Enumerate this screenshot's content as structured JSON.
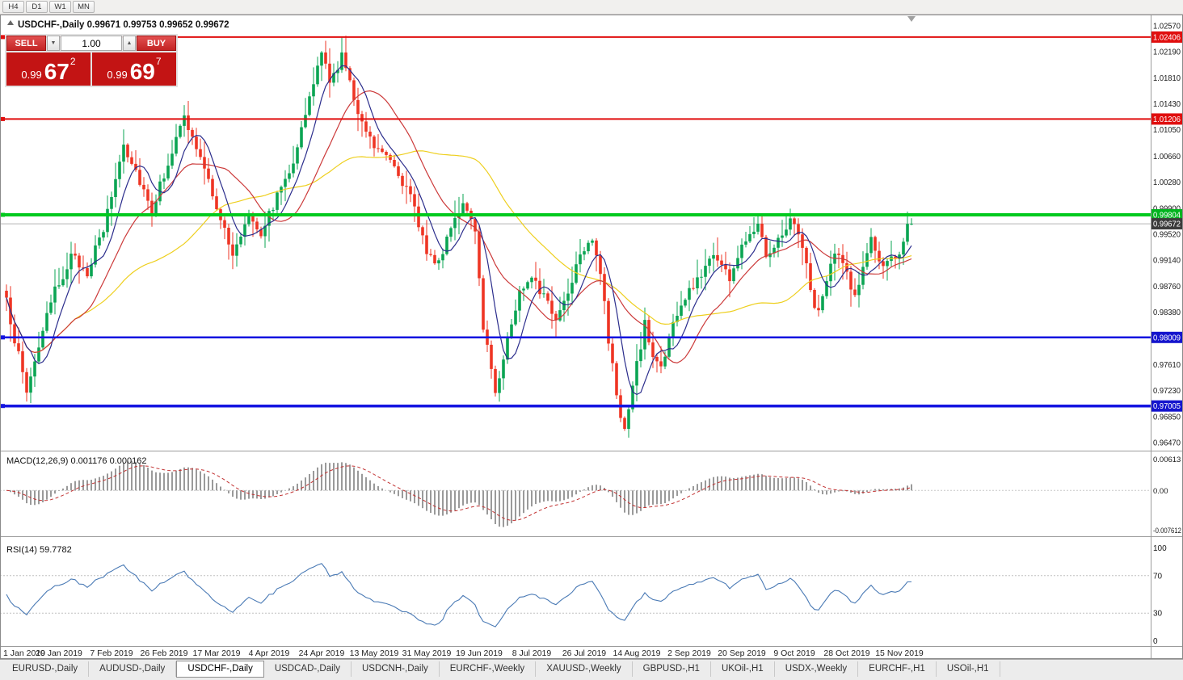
{
  "toolbar": {
    "timeframes": [
      "H4",
      "D1",
      "W1",
      "MN"
    ]
  },
  "trade_widget": {
    "sell_label": "SELL",
    "buy_label": "BUY",
    "volume": "1.00",
    "sell_price": {
      "prefix": "0.99",
      "big": "67",
      "sup": "2"
    },
    "buy_price": {
      "prefix": "0.99",
      "big": "69",
      "sup": "7"
    }
  },
  "colors": {
    "up": "#0ba553",
    "down": "#ee3524",
    "macd_hist": "#8f8f8f",
    "macd_signal": "#c23232",
    "rsi": "#4a7ab5"
  },
  "chart_data": {
    "type": "candlestick",
    "title": "USDCHF-,Daily 0.99671 0.99753 0.99652 0.99672",
    "symbol": "USDCHF-",
    "timeframe": "Daily",
    "ohlc": {
      "open": 0.99671,
      "high": 0.99753,
      "low": 0.99652,
      "close": 0.99672
    },
    "y_range": {
      "min": 0.9647,
      "max": 1.0257
    },
    "y_axis_ticks": [
      1.0257,
      1.0219,
      1.0181,
      1.0143,
      1.0105,
      1.0066,
      1.0028,
      0.999,
      0.9952,
      0.9914,
      0.9876,
      0.9838,
      0.9761,
      0.9723,
      0.9685,
      0.9647
    ],
    "price_badges": [
      {
        "value": 1.02406,
        "color": "#e00e0e"
      },
      {
        "value": 1.01206,
        "color": "#e00e0e"
      },
      {
        "value": 0.99804,
        "color": "#00b41e"
      },
      {
        "value": 0.99672,
        "color": "#3c3c3c"
      },
      {
        "value": 0.98009,
        "color": "#1414cd"
      },
      {
        "value": 0.97005,
        "color": "#1414cd"
      }
    ],
    "price_lines": [
      {
        "price": 1.02406,
        "color": "#e00e0e",
        "width": 2
      },
      {
        "price": 1.01206,
        "color": "#e00e0e",
        "width": 2
      },
      {
        "price": 0.99804,
        "color": "#00ca1e",
        "width": 4
      },
      {
        "price": 0.98009,
        "color": "#1414e0",
        "width": 2.5
      },
      {
        "price": 0.97005,
        "color": "#1414e0",
        "width": 3.5
      }
    ],
    "current_price": 0.99672,
    "candle_count": 225,
    "price_anchors": [
      [
        0,
        0.9852
      ],
      [
        2,
        0.98
      ],
      [
        5,
        0.9722
      ],
      [
        8,
        0.979
      ],
      [
        12,
        0.9868
      ],
      [
        16,
        0.9918
      ],
      [
        20,
        0.9898
      ],
      [
        24,
        0.9958
      ],
      [
        29,
        1.0085
      ],
      [
        33,
        1.0032
      ],
      [
        36,
        0.9988
      ],
      [
        40,
        1.0058
      ],
      [
        44,
        1.0122
      ],
      [
        47,
        1.0078
      ],
      [
        52,
        0.9995
      ],
      [
        56,
        0.9918
      ],
      [
        60,
        0.9985
      ],
      [
        63,
        0.9955
      ],
      [
        67,
        1.0008
      ],
      [
        71,
        1.0062
      ],
      [
        75,
        1.0148
      ],
      [
        78,
        1.0222
      ],
      [
        80,
        1.017
      ],
      [
        83,
        1.0215
      ],
      [
        86,
        1.015
      ],
      [
        88,
        1.012
      ],
      [
        91,
        1.0082
      ],
      [
        94,
        1.0075
      ],
      [
        97,
        1.0042
      ],
      [
        100,
        1.0005
      ],
      [
        104,
        0.993
      ],
      [
        107,
        0.9906
      ],
      [
        110,
        0.9968
      ],
      [
        113,
        0.9996
      ],
      [
        116,
        0.9952
      ],
      [
        118,
        0.982
      ],
      [
        121,
        0.9722
      ],
      [
        124,
        0.9798
      ],
      [
        127,
        0.9866
      ],
      [
        130,
        0.9896
      ],
      [
        133,
        0.986
      ],
      [
        136,
        0.9828
      ],
      [
        139,
        0.9868
      ],
      [
        142,
        0.9928
      ],
      [
        145,
        0.9948
      ],
      [
        147,
        0.9898
      ],
      [
        149,
        0.9795
      ],
      [
        151,
        0.9718
      ],
      [
        153,
        0.9662
      ],
      [
        156,
        0.976
      ],
      [
        158,
        0.982
      ],
      [
        160,
        0.9772
      ],
      [
        162,
        0.9758
      ],
      [
        165,
        0.982
      ],
      [
        168,
        0.9858
      ],
      [
        171,
        0.9885
      ],
      [
        175,
        0.9926
      ],
      [
        179,
        0.9888
      ],
      [
        183,
        0.9946
      ],
      [
        186,
        0.9972
      ],
      [
        188,
        0.9925
      ],
      [
        191,
        0.9942
      ],
      [
        194,
        0.9976
      ],
      [
        197,
        0.9938
      ],
      [
        199,
        0.9868
      ],
      [
        201,
        0.9836
      ],
      [
        205,
        0.9926
      ],
      [
        208,
        0.9896
      ],
      [
        210,
        0.986
      ],
      [
        214,
        0.9944
      ],
      [
        217,
        0.99
      ],
      [
        220,
        0.9918
      ],
      [
        222,
        0.994
      ],
      [
        224,
        0.99672
      ]
    ],
    "moving_averages": [
      {
        "period": 45,
        "color": "#eecf1e"
      },
      {
        "period": 18,
        "color": "#cc3a3a"
      },
      {
        "period": 7,
        "color": "#2b2d8c"
      }
    ],
    "x_axis_labels": [
      [
        "1 Jan 2019",
        0
      ],
      [
        "20 Jan 2019",
        13
      ],
      [
        "7 Feb 2019",
        26
      ],
      [
        "26 Feb 2019",
        39
      ],
      [
        "17 Mar 2019",
        52
      ],
      [
        "4 Apr 2019",
        65
      ],
      [
        "24 Apr 2019",
        78
      ],
      [
        "13 May 2019",
        91
      ],
      [
        "31 May 2019",
        104
      ],
      [
        "19 Jun 2019",
        117
      ],
      [
        "8 Jul 2019",
        130
      ],
      [
        "26 Jul 2019",
        143
      ],
      [
        "14 Aug 2019",
        156
      ],
      [
        "2 Sep 2019",
        169
      ],
      [
        "20 Sep 2019",
        182
      ],
      [
        "9 Oct 2019",
        195
      ],
      [
        "28 Oct 2019",
        208
      ],
      [
        "15 Nov 2019",
        221
      ]
    ],
    "indicators": {
      "macd": {
        "label": "MACD(12,26,9)",
        "values": "0.001176 0.000162",
        "fast": 12,
        "slow": 26,
        "signal": 9,
        "vmax": 0.00613,
        "vmin": -0.007612,
        "axis_labels": [
          "0.00613",
          "0.00",
          "-0.007612"
        ]
      },
      "rsi": {
        "label": "RSI(14)",
        "value": "59.7782",
        "period": 14,
        "levels": [
          70,
          30
        ],
        "axis_labels": [
          "100",
          "70",
          "30",
          "0"
        ]
      }
    }
  },
  "taskbar": {
    "tabs": [
      {
        "label": "EURUSD-,Daily",
        "active": false
      },
      {
        "label": "AUDUSD-,Daily",
        "active": false
      },
      {
        "label": "USDCHF-,Daily",
        "active": true
      },
      {
        "label": "USDCAD-,Daily",
        "active": false
      },
      {
        "label": "USDCNH-,Daily",
        "active": false
      },
      {
        "label": "EURCHF-,Weekly",
        "active": false
      },
      {
        "label": "XAUUSD-,Weekly",
        "active": false
      },
      {
        "label": "GBPUSD-,H1",
        "active": false
      },
      {
        "label": "UKOil-,H1",
        "active": false
      },
      {
        "label": "USDX-,Weekly",
        "active": false
      },
      {
        "label": "EURCHF-,H1",
        "active": false
      },
      {
        "label": "USOil-,H1",
        "active": false
      }
    ]
  }
}
